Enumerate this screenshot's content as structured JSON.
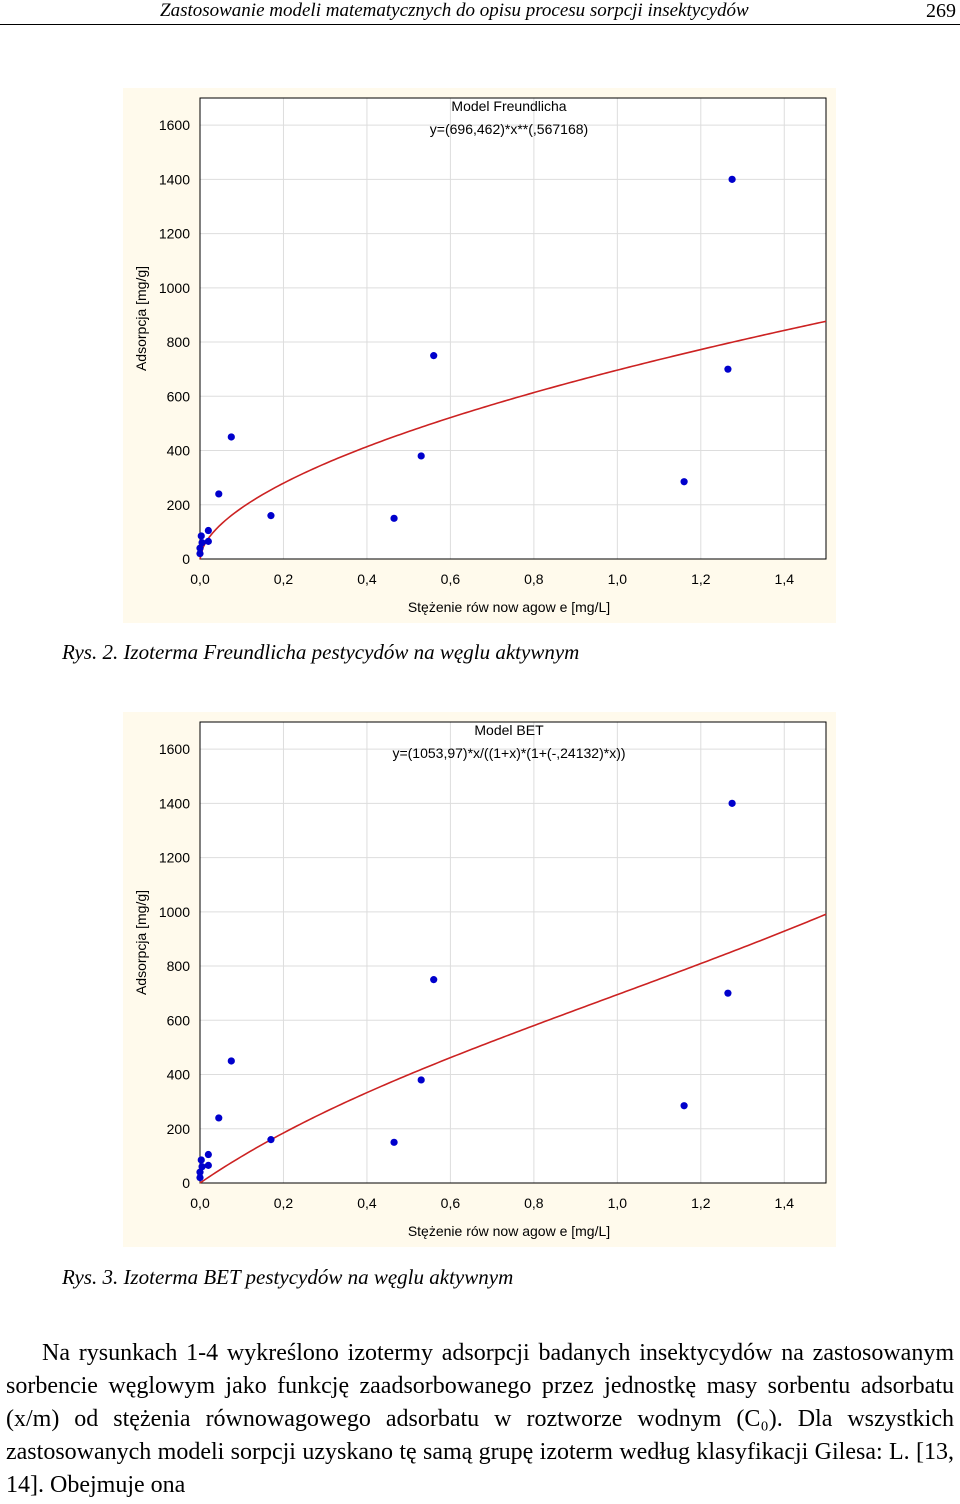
{
  "header": {
    "title": "Zastosowanie modeli matematycznych do opisu procesu sorpcji insektycydów",
    "page_number": "269"
  },
  "chart_data": [
    {
      "type": "scatter",
      "title": "Model Freundlicha",
      "equation": "y=(696,462)*x**(,567168)",
      "xlabel": "Stężenie rów now agow e [mg/L]",
      "ylabel": "Adsorpcja [mg/g]",
      "xlim": [
        0,
        1.5
      ],
      "ylim": [
        0,
        1700
      ],
      "x_ticks": [
        "0,0",
        "0,2",
        "0,4",
        "0,6",
        "0,8",
        "1,0",
        "1,2",
        "1,4"
      ],
      "y_ticks": [
        "0",
        "200",
        "400",
        "600",
        "800",
        "1000",
        "1200",
        "1400",
        "1600"
      ],
      "grid": true,
      "point_color": "#0000cc",
      "curve_color": "#cc2222",
      "series": [
        {
          "x": [
            0.0,
            0.0,
            0.005,
            0.003,
            0.02,
            0.02,
            0.045,
            0.075,
            0.17,
            0.465,
            0.53,
            0.56,
            1.16,
            1.265,
            1.275
          ],
          "y": [
            20,
            40,
            60,
            85,
            65,
            105,
            240,
            450,
            160,
            150,
            380,
            750,
            285,
            700,
            1400
          ]
        }
      ],
      "fit": {
        "model": "freundlich",
        "a": 696.462,
        "b": 0.567168,
        "x_range": [
          0,
          1.5
        ]
      }
    },
    {
      "type": "scatter",
      "title": "Model BET",
      "equation": "y=(1053,97)*x/((1+x)*(1+(-,24132)*x))",
      "xlabel": "Stężenie rów now agow e [mg/L]",
      "ylabel": "Adsorpcja [mg/g]",
      "xlim": [
        0,
        1.5
      ],
      "ylim": [
        0,
        1700
      ],
      "x_ticks": [
        "0,0",
        "0,2",
        "0,4",
        "0,6",
        "0,8",
        "1,0",
        "1,2",
        "1,4"
      ],
      "y_ticks": [
        "0",
        "200",
        "400",
        "600",
        "800",
        "1000",
        "1200",
        "1400",
        "1600"
      ],
      "grid": true,
      "point_color": "#0000cc",
      "curve_color": "#cc2222",
      "series": [
        {
          "x": [
            0.0,
            0.0,
            0.005,
            0.003,
            0.02,
            0.02,
            0.045,
            0.075,
            0.17,
            0.465,
            0.53,
            0.56,
            1.16,
            1.265,
            1.275
          ],
          "y": [
            20,
            40,
            60,
            85,
            65,
            105,
            240,
            450,
            160,
            150,
            380,
            750,
            285,
            700,
            1400
          ]
        }
      ],
      "fit": {
        "model": "bet",
        "a": 1053.97,
        "b": -0.24132,
        "x_range": [
          0,
          1.5
        ]
      }
    }
  ],
  "captions": {
    "fig2": "Rys. 2. Izoterma Freundlicha pestycydów na węglu aktywnym",
    "fig3": "Rys. 3. Izoterma BET pestycydów na węglu aktywnym"
  },
  "body_text": "Na rysunkach 1-4 wykreślono izotermy adsorpcji badanych insektycydów na zastosowanym sorbencie węglowym jako funkcję zaadsorbowanego przez jednostkę masy sorbentu adsorbatu (x/m) od stężenia równowagowego adsorbatu w roztworze wodnym (C₀). Dla wszystkich zastosowanych modeli sorpcji uzyskano tę samą grupę izoterm według klasyfikacji Gilesa: L. [13, 14]. Obejmuje ona"
}
